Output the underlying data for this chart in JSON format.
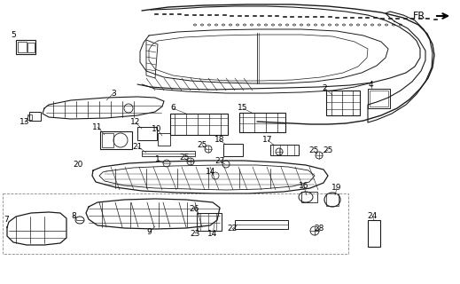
{
  "background_color": "#ffffff",
  "line_color": "#1a1a1a",
  "text_color": "#000000",
  "font_size": 6.5,
  "figsize": [
    5.19,
    3.2
  ],
  "dpi": 100
}
